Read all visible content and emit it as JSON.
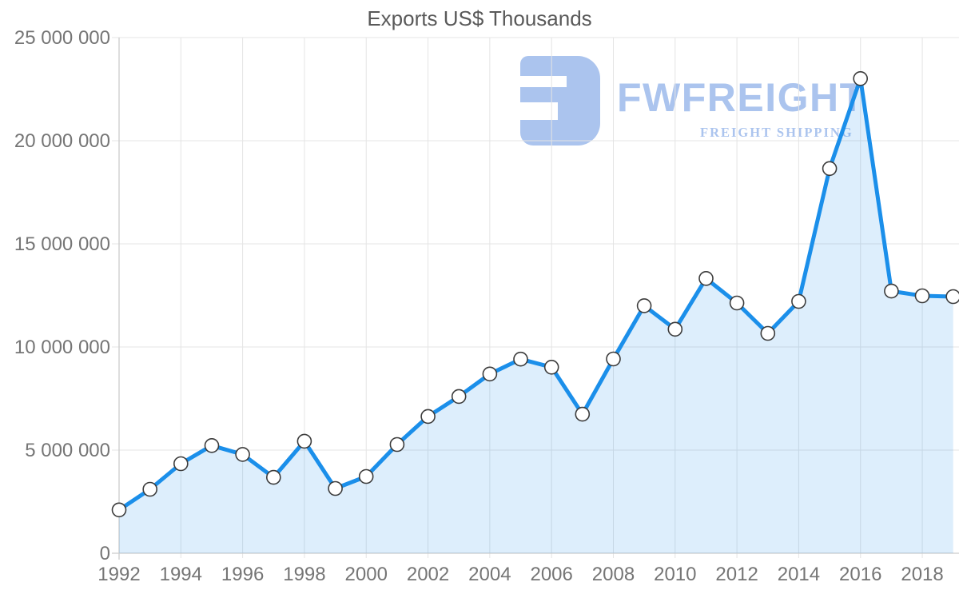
{
  "chart_data": {
    "type": "area",
    "title": "Exports US$ Thousands",
    "x": [
      1992,
      1993,
      1994,
      1995,
      1996,
      1997,
      1998,
      1999,
      2000,
      2001,
      2002,
      2003,
      2004,
      2005,
      2006,
      2007,
      2008,
      2009,
      2010,
      2011,
      2012,
      2013,
      2014,
      2015,
      2016,
      2017,
      2018,
      2019
    ],
    "series": [
      {
        "name": "Exports US$ Thousands",
        "values": [
          2100000,
          3100000,
          4340000,
          5220000,
          4790000,
          3680000,
          5430000,
          3140000,
          3720000,
          5270000,
          6630000,
          7600000,
          8690000,
          9410000,
          9020000,
          6740000,
          9420000,
          12000000,
          10860000,
          13320000,
          12130000,
          10660000,
          12210000,
          18650000,
          23010000,
          12710000,
          12480000,
          12440000
        ]
      }
    ],
    "xlabel": "",
    "ylabel": "",
    "ylim": [
      0,
      25000000
    ],
    "ytick_step": 5000000,
    "ytick_labels": [
      "0",
      "5 000 000",
      "10 000 000",
      "15 000 000",
      "20 000 000",
      "25 000 000"
    ],
    "xtick_labels": [
      "1992",
      "1994",
      "1996",
      "1998",
      "2000",
      "2002",
      "2004",
      "2006",
      "2008",
      "2010",
      "2012",
      "2014",
      "2016",
      "2018"
    ],
    "grid": "on",
    "legend": "none",
    "marker": "circle"
  },
  "watermark": {
    "brand": "FWFREIGHT",
    "tagline": "FREIGHT SHIPPING"
  },
  "colors": {
    "line": "#1b8fea",
    "area_fill": "rgba(27,143,234,0.15)",
    "marker_fill": "#ffffff",
    "marker_stroke": "#3c3c3c",
    "gridline": "#e4e4e4",
    "axis_line": "#cccccc",
    "tick_label": "#757575",
    "title": "#595959",
    "watermark": "#abc4ee"
  }
}
